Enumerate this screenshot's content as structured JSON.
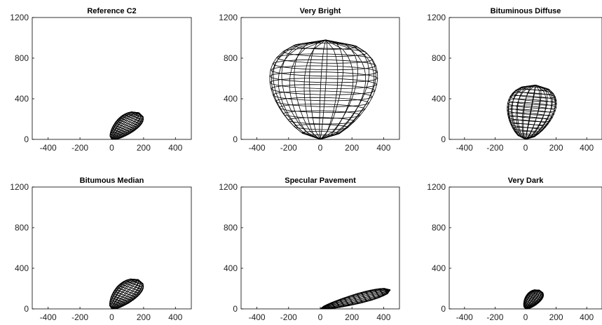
{
  "chart_data": [
    {
      "type": "polar-lobe-wireframe",
      "title": "Reference C2",
      "xlim": [
        -500,
        500
      ],
      "ylim": [
        0,
        1200
      ],
      "xticks": [
        -400,
        -200,
        0,
        200,
        400
      ],
      "yticks": [
        0,
        400,
        800,
        1200
      ],
      "lobe": {
        "axis_angle_deg": 57,
        "half_length": 160,
        "radius": 95,
        "offset_deg": 2
      }
    },
    {
      "type": "polar-lobe-wireframe",
      "title": "Very Bright",
      "xlim": [
        -500,
        500
      ],
      "ylim": [
        0,
        1200
      ],
      "xticks": [
        -400,
        -200,
        0,
        200,
        400
      ],
      "yticks": [
        0,
        400,
        800,
        1200
      ],
      "lobe": {
        "axis_angle_deg": 88,
        "half_length": 500,
        "radius": 430,
        "offset_deg": 10
      }
    },
    {
      "type": "polar-lobe-wireframe",
      "title": "Bituminous Diffuse",
      "xlim": [
        -500,
        500
      ],
      "ylim": [
        0,
        1200
      ],
      "xticks": [
        -400,
        -200,
        0,
        200,
        400
      ],
      "yticks": [
        0,
        400,
        800,
        1200
      ],
      "lobe": {
        "axis_angle_deg": 83,
        "half_length": 275,
        "radius": 200,
        "offset_deg": 6
      }
    },
    {
      "type": "polar-lobe-wireframe",
      "title": "Bitumous Median",
      "xlim": [
        -500,
        500
      ],
      "ylim": [
        0,
        1200
      ],
      "xticks": [
        -400,
        -200,
        0,
        200,
        400
      ],
      "yticks": [
        0,
        400,
        800,
        1200
      ],
      "lobe": {
        "axis_angle_deg": 60,
        "half_length": 170,
        "radius": 100,
        "offset_deg": 3
      }
    },
    {
      "type": "polar-lobe-wireframe",
      "title": "Specular Pavement",
      "xlim": [
        -500,
        500
      ],
      "ylim": [
        0,
        1200
      ],
      "xticks": [
        -400,
        -200,
        0,
        200,
        400
      ],
      "yticks": [
        0,
        400,
        800,
        1200
      ],
      "lobe": {
        "axis_angle_deg": 23,
        "half_length": 245,
        "radius": 60,
        "offset_deg": 1
      }
    },
    {
      "type": "polar-lobe-wireframe",
      "title": "Very Dark",
      "xlim": [
        -500,
        500
      ],
      "ylim": [
        0,
        1200
      ],
      "xticks": [
        -400,
        -200,
        0,
        200,
        400
      ],
      "yticks": [
        0,
        400,
        800,
        1200
      ],
      "lobe": {
        "axis_angle_deg": 64,
        "half_length": 105,
        "radius": 68,
        "offset_deg": 3
      }
    }
  ]
}
